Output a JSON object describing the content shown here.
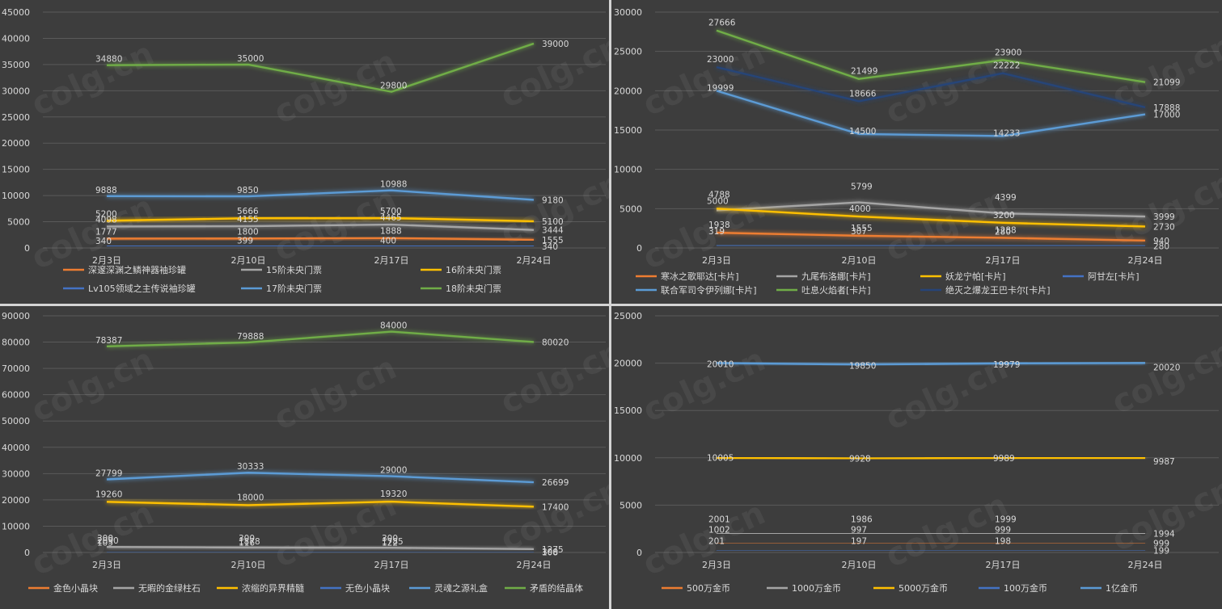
{
  "colors": {
    "orange": "#ed7d31",
    "gray": "#a5a5a5",
    "gold": "#ffc000",
    "blue": "#4472c4",
    "lightblue": "#5b9bd5",
    "green": "#70ad47",
    "navy": "#264478",
    "background": "#3d3d3d",
    "grid": "#5a5a5a",
    "text": "#d9d9d9"
  },
  "watermark": "colg.cn",
  "chart_data": [
    {
      "type": "line",
      "categories": [
        "2月3日",
        "2月10日",
        "2月17日",
        "2月24日"
      ],
      "ylim": [
        0,
        45000
      ],
      "yticks": [
        0,
        5000,
        10000,
        15000,
        20000,
        25000,
        30000,
        35000,
        40000,
        45000
      ],
      "grid": true,
      "legend": "bottom",
      "series": [
        {
          "name": "深邃深渊之鳞神器袖珍罐",
          "color": "orange",
          "values": [
            1777,
            1800,
            1888,
            1555
          ]
        },
        {
          "name": "15阶未央门票",
          "color": "gray",
          "values": [
            4098,
            4155,
            4465,
            3444
          ]
        },
        {
          "name": "16阶未央门票",
          "color": "gold",
          "values": [
            5200,
            5666,
            5700,
            5100
          ]
        },
        {
          "name": "Lv105领域之主传说袖珍罐",
          "color": "blue",
          "values": [
            340,
            399,
            400,
            340
          ]
        },
        {
          "name": "17阶未央门票",
          "color": "lightblue",
          "values": [
            9888,
            9850,
            10988,
            9180
          ]
        },
        {
          "name": "18阶未央门票",
          "color": "green",
          "values": [
            34880,
            35000,
            29800,
            39000
          ]
        }
      ]
    },
    {
      "type": "line",
      "categories": [
        "2月3日",
        "2月10日",
        "2月17日",
        "2月24日"
      ],
      "ylim": [
        0,
        30000
      ],
      "yticks": [
        0,
        5000,
        10000,
        15000,
        20000,
        25000,
        30000
      ],
      "grid": true,
      "legend": "bottom",
      "series": [
        {
          "name": "寒冰之歌耶达[卡片]",
          "color": "orange",
          "values": [
            1938,
            1555,
            1288,
            940
          ]
        },
        {
          "name": "九尾布洛娜[卡片]",
          "color": "gray",
          "values": [
            4788,
            5799,
            4399,
            3999
          ]
        },
        {
          "name": "妖龙宁帕[卡片]",
          "color": "gold",
          "values": [
            5000,
            4000,
            3200,
            2730
          ]
        },
        {
          "name": "阿甘左[卡片]",
          "color": "blue",
          "values": [
            319,
            307,
            280,
            280
          ]
        },
        {
          "name": "联合军司令伊列娜[卡片]",
          "color": "lightblue",
          "values": [
            19999,
            14500,
            14233,
            17000
          ]
        },
        {
          "name": "吐息火焰者[卡片]",
          "color": "green",
          "values": [
            27666,
            21499,
            23900,
            21099
          ]
        },
        {
          "name": "绝灭之爆龙王巴卡尔[卡片]",
          "color": "navy",
          "values": [
            23000,
            18666,
            22222,
            17888
          ]
        }
      ]
    },
    {
      "type": "line",
      "categories": [
        "2月3日",
        "2月10日",
        "2月17日",
        "2月24日"
      ],
      "ylim": [
        0,
        90000
      ],
      "yticks": [
        0,
        10000,
        20000,
        30000,
        40000,
        50000,
        60000,
        70000,
        80000,
        90000
      ],
      "grid": true,
      "legend": "bottom",
      "series": [
        {
          "name": "金色小晶块",
          "color": "orange",
          "values": [
            300,
            300,
            300,
            300
          ]
        },
        {
          "name": "无暇的金绿柱石",
          "color": "gray",
          "values": [
            2090,
            1878,
            1785,
            1275
          ]
        },
        {
          "name": "浓缩的异界精髓",
          "color": "gold",
          "values": [
            19260,
            18000,
            19320,
            17400
          ]
        },
        {
          "name": "无色小晶块",
          "color": "blue",
          "values": [
            105,
            116,
            122,
            108
          ]
        },
        {
          "name": "灵魂之源礼盒",
          "color": "lightblue",
          "values": [
            27799,
            30333,
            29000,
            26699
          ]
        },
        {
          "name": "矛盾的结晶体",
          "color": "green",
          "values": [
            78387,
            79888,
            84000,
            80020
          ]
        }
      ]
    },
    {
      "type": "line",
      "categories": [
        "2月3日",
        "2月10日",
        "2月17日",
        "2月24日"
      ],
      "ylim": [
        0,
        25000
      ],
      "yticks": [
        0,
        5000,
        10000,
        15000,
        20000,
        25000
      ],
      "grid": true,
      "legend": "bottom",
      "series": [
        {
          "name": "500万金币",
          "color": "orange",
          "values": [
            1002,
            997,
            999,
            999
          ]
        },
        {
          "name": "1000万金币",
          "color": "gray",
          "values": [
            2001,
            1986,
            1999,
            1994
          ]
        },
        {
          "name": "5000万金币",
          "color": "gold",
          "values": [
            10005,
            9928,
            9989,
            9987
          ]
        },
        {
          "name": "100万金币",
          "color": "blue",
          "values": [
            201,
            197,
            198,
            199
          ]
        },
        {
          "name": "1亿金币",
          "color": "lightblue",
          "values": [
            20010,
            19850,
            19979,
            20020
          ]
        }
      ]
    }
  ]
}
